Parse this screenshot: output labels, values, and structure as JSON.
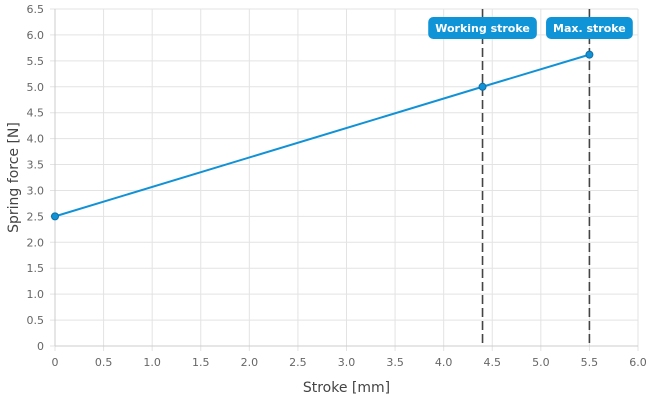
{
  "chart_data": {
    "type": "line",
    "xlabel": "Stroke [mm]",
    "ylabel": "Spring force [N]",
    "xlim": [
      0,
      6.0
    ],
    "ylim": [
      0,
      6.5
    ],
    "x_ticks": [
      "0",
      "0.5",
      "1.0",
      "1.5",
      "2.0",
      "2.5",
      "3.0",
      "3.5",
      "4.0",
      "4.5",
      "5.0",
      "5.5",
      "6.0"
    ],
    "y_ticks": [
      "0",
      "0.5",
      "1.0",
      "1.5",
      "2.0",
      "2.5",
      "3.0",
      "3.5",
      "4.0",
      "4.5",
      "5.0",
      "5.5",
      "6.0",
      "6.5"
    ],
    "grid": true,
    "series": [
      {
        "x": [
          0,
          4.4,
          5.5
        ],
        "y": [
          2.5,
          5.0,
          5.62
        ]
      }
    ],
    "markers": [
      {
        "label": "Working stroke",
        "x": 4.4
      },
      {
        "label": "Max. stroke",
        "x": 5.5
      }
    ],
    "colors": {
      "line": "#1192d6",
      "marker": "#1192d6",
      "badge": "#0f94d8",
      "grid": "#e3e3e3",
      "dashed": "#444444"
    }
  }
}
